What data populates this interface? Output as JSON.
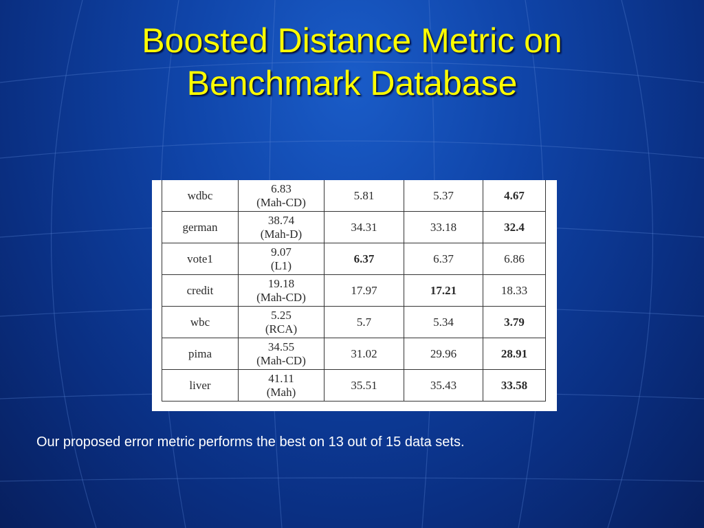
{
  "slide": {
    "title_line1": "Boosted Distance Metric on",
    "title_line2": "Benchmark Database",
    "caption": "Our proposed error metric performs the best on 13 out of 15 data sets."
  },
  "table": {
    "rows": [
      {
        "dataset": "wdbc",
        "baseline_value": "6.83",
        "baseline_method": "(Mah-CD)",
        "v1": "5.81",
        "v2": "5.37",
        "v3": "4.67",
        "best": 3
      },
      {
        "dataset": "german",
        "baseline_value": "38.74",
        "baseline_method": "(Mah-D)",
        "v1": "34.31",
        "v2": "33.18",
        "v3": "32.4",
        "best": 3
      },
      {
        "dataset": "vote1",
        "baseline_value": "9.07",
        "baseline_method": "(L1)",
        "v1": "6.37",
        "v2": "6.37",
        "v3": "6.86",
        "best": 1
      },
      {
        "dataset": "credit",
        "baseline_value": "19.18",
        "baseline_method": "(Mah-CD)",
        "v1": "17.97",
        "v2": "17.21",
        "v3": "18.33",
        "best": 2
      },
      {
        "dataset": "wbc",
        "baseline_value": "5.25",
        "baseline_method": "(RCA)",
        "v1": "5.7",
        "v2": "5.34",
        "v3": "3.79",
        "best": 3
      },
      {
        "dataset": "pima",
        "baseline_value": "34.55",
        "baseline_method": "(Mah-CD)",
        "v1": "31.02",
        "v2": "29.96",
        "v3": "28.91",
        "best": 3
      },
      {
        "dataset": "liver",
        "baseline_value": "41.11",
        "baseline_method": "(Mah)",
        "v1": "35.51",
        "v2": "35.43",
        "v3": "33.58",
        "best": 3
      }
    ]
  },
  "colors": {
    "title": "#ffff00",
    "background": "#0f44a8",
    "caption": "#ffffff"
  }
}
